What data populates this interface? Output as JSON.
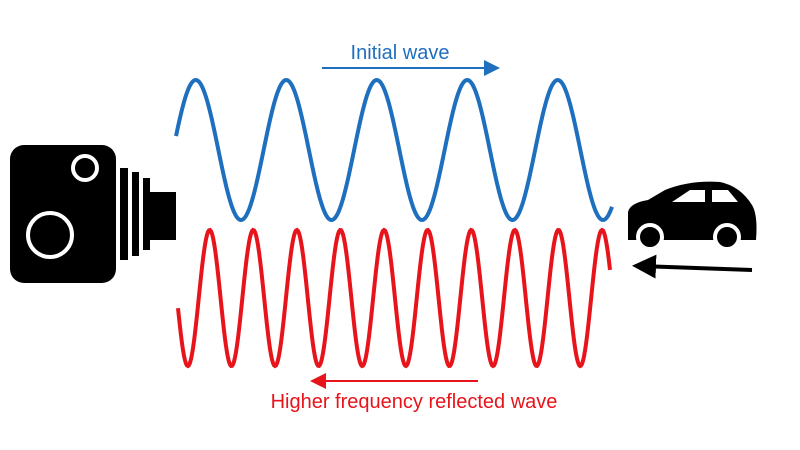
{
  "labels": {
    "initial": "Initial wave",
    "reflected": "Higher frequency reflected wave"
  }
}
